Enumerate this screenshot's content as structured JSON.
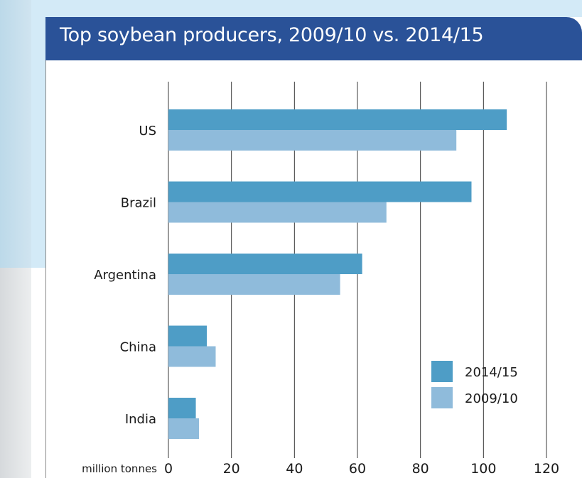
{
  "chart_data": {
    "type": "bar",
    "orientation": "horizontal",
    "title": "Top soybean producers, 2009/10 vs. 2014/15",
    "xlabel": "million tonnes",
    "ylabel": "",
    "xlim": [
      0,
      120
    ],
    "xticks": [
      0,
      20,
      40,
      60,
      80,
      100,
      120
    ],
    "grid": true,
    "legend_position": "bottom-right",
    "categories": [
      "US",
      "Brazil",
      "Argentina",
      "China",
      "India"
    ],
    "series": [
      {
        "name": "2014/15",
        "color": "#4e9dc6",
        "values": [
          107.4,
          96.2,
          61.5,
          12.2,
          8.7
        ]
      },
      {
        "name": "2009/10",
        "color": "#8fbbdb",
        "values": [
          91.4,
          69.2,
          54.5,
          15.0,
          9.7
        ]
      }
    ]
  }
}
